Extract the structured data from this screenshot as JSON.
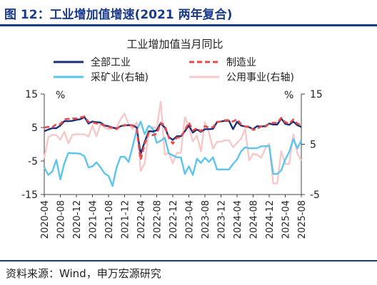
{
  "figure": {
    "title": "图 12：工业增加值增速(2021 两年复合)",
    "source": "资料来源：Wind，申万宏源研究"
  },
  "chart_data": {
    "type": "line",
    "title": "工业增加值当月同比",
    "left_unit": "%",
    "right_unit": "%",
    "left_axis": {
      "ylim": [
        -15,
        15
      ],
      "ticks": [
        15,
        5,
        -5,
        -15
      ]
    },
    "right_axis": {
      "ylim": [
        -5,
        15
      ],
      "ticks": [
        15,
        5,
        -5
      ]
    },
    "legend_placement": "top",
    "grid": false,
    "x_ticks": [
      "2020-04",
      "2020-08",
      "2020-12",
      "2021-04",
      "2021-08",
      "2021-12",
      "2022-04",
      "2022-08",
      "2022-12",
      "2023-04",
      "2023-08",
      "2023-12",
      "2024-04",
      "2024-08",
      "2024-12",
      "2025-04",
      "2025-08"
    ],
    "x": [
      "2020-04",
      "2020-05",
      "2020-06",
      "2020-07",
      "2020-08",
      "2020-09",
      "2020-10",
      "2020-11",
      "2020-12",
      "2021-01",
      "2021-02",
      "2021-03",
      "2021-04",
      "2021-05",
      "2021-06",
      "2021-07",
      "2021-08",
      "2021-09",
      "2021-10",
      "2021-11",
      "2021-12",
      "2022-01",
      "2022-02",
      "2022-03",
      "2022-04",
      "2022-05",
      "2022-06",
      "2022-07",
      "2022-08",
      "2022-09",
      "2022-10",
      "2022-11",
      "2022-12",
      "2023-01",
      "2023-02",
      "2023-03",
      "2023-04",
      "2023-05",
      "2023-06",
      "2023-07",
      "2023-08",
      "2023-09",
      "2023-10",
      "2023-11",
      "2023-12",
      "2024-01",
      "2024-02",
      "2024-03",
      "2024-04",
      "2024-05",
      "2024-06",
      "2024-07",
      "2024-08",
      "2024-09",
      "2024-10",
      "2024-11",
      "2024-12",
      "2025-01",
      "2025-02",
      "2025-03",
      "2025-04",
      "2025-05",
      "2025-06",
      "2025-07",
      "2025-08"
    ],
    "series": [
      {
        "name": "全部工业",
        "axis": "left",
        "color": "#1a2f7a",
        "style": "solid",
        "values": [
          3.9,
          4.4,
          4.8,
          4.8,
          5.6,
          6.9,
          6.9,
          7.0,
          7.3,
          7.5,
          8.1,
          6.2,
          6.8,
          6.6,
          6.5,
          5.6,
          5.4,
          5.0,
          4.7,
          5.4,
          5.6,
          5.7,
          5.7,
          5.0,
          -2.9,
          0.7,
          3.9,
          3.8,
          4.2,
          6.3,
          5.0,
          2.2,
          1.3,
          2.4,
          2.4,
          3.9,
          5.6,
          3.5,
          4.4,
          3.7,
          4.5,
          4.5,
          4.6,
          6.6,
          6.8,
          7.0,
          7.0,
          4.5,
          6.7,
          5.6,
          5.3,
          5.1,
          4.5,
          5.4,
          5.3,
          5.4,
          6.2,
          5.9,
          5.9,
          7.7,
          6.1,
          5.8,
          6.8,
          5.7,
          5.2
        ]
      },
      {
        "name": "制造业",
        "axis": "left",
        "color": "#e84a4a",
        "style": "dashed",
        "values": [
          5.0,
          5.2,
          5.1,
          6.0,
          6.0,
          7.4,
          7.6,
          7.7,
          7.7,
          8.0,
          8.3,
          6.7,
          6.6,
          6.2,
          6.1,
          5.5,
          5.2,
          4.9,
          4.5,
          5.5,
          5.7,
          5.8,
          5.6,
          4.4,
          -4.6,
          0.1,
          3.4,
          2.7,
          3.1,
          6.4,
          5.6,
          2.0,
          0.2,
          2.0,
          2.0,
          4.2,
          6.5,
          4.1,
          4.8,
          3.9,
          5.4,
          5.0,
          5.1,
          6.7,
          6.8,
          7.2,
          7.2,
          6.8,
          7.5,
          6.0,
          5.3,
          5.3,
          4.3,
          4.6,
          5.4,
          5.2,
          6.2,
          6.4,
          6.4,
          7.9,
          6.6,
          6.2,
          7.4,
          6.2,
          5.7
        ]
      },
      {
        "name": "采矿业(右轴)",
        "axis": "right",
        "color": "#5bc4ef",
        "style": "solid",
        "values": [
          0.4,
          -1.1,
          -0.4,
          1.9,
          -2.0,
          1.2,
          3.3,
          3.2,
          3.2,
          3.1,
          2.6,
          0.4,
          0.6,
          1.4,
          0.4,
          -0.8,
          -1.3,
          -3.3,
          0.4,
          2.5,
          2.5,
          1.5,
          4.6,
          7.8,
          9.5,
          7.0,
          8.7,
          8.1,
          5.3,
          5.7,
          6.3,
          3.2,
          2.8,
          2.4,
          2.4,
          -0.9,
          0.6,
          -1.1,
          2.1,
          1.3,
          2.3,
          1.5,
          2.4,
          0.0,
          0.0,
          0.0,
          0.0,
          1.1,
          2.0,
          3.6,
          4.4,
          4.2,
          4.2,
          4.2,
          4.6,
          4.6,
          4.7,
          -0.9,
          -0.9,
          -0.2,
          2.0,
          3.5,
          6.0,
          4.2,
          5.8
        ]
      },
      {
        "name": "公用事业(右轴)",
        "axis": "right",
        "color": "#f8c8c8",
        "style": "solid",
        "values": [
          2.2,
          6.4,
          6.9,
          6.8,
          5.9,
          7.5,
          5.2,
          6.9,
          7.0,
          7.0,
          7.0,
          6.5,
          8.7,
          6.6,
          9.1,
          8.4,
          8.0,
          8.2,
          8.4,
          10.0,
          11.1,
          8.9,
          8.1,
          9.4,
          -0.3,
          1.2,
          7.4,
          8.4,
          8.1,
          13.5,
          2.9,
          3.4,
          1.2,
          3.3,
          3.3,
          10.4,
          8.4,
          5.6,
          6.7,
          3.6,
          9.4,
          7.4,
          4.1,
          5.5,
          5.5,
          5.8,
          5.8,
          4.4,
          5.3,
          6.1,
          8.1,
          1.8,
          3.1,
          2.9,
          2.3,
          4.1,
          5.1,
          -2.8,
          -2.8,
          3.6,
          1.1,
          1.1,
          7.0,
          3.2,
          1.7
        ]
      }
    ]
  }
}
